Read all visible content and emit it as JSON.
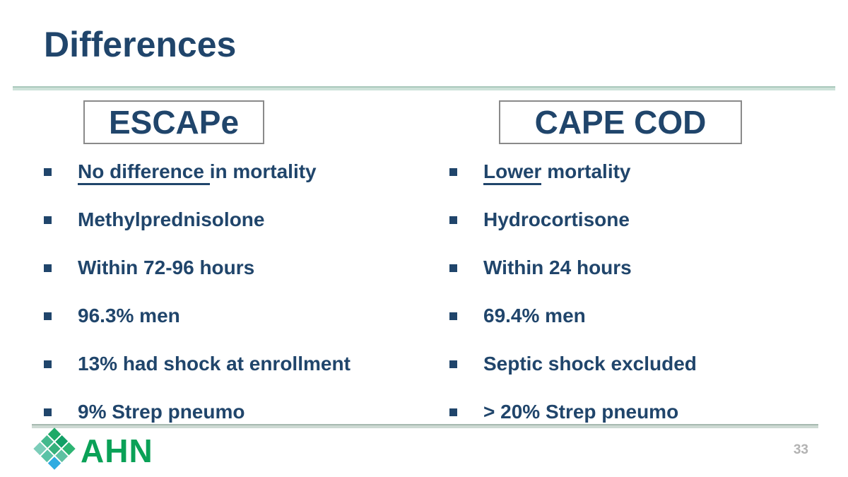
{
  "slide": {
    "title": "Differences",
    "page_number": "33"
  },
  "brand": {
    "name": "AHN",
    "green": "#0aa157",
    "navy": "#20456b",
    "divider_green": "#cde2d9"
  },
  "logo": {
    "tiles": [
      "#1fa967",
      "#12a066",
      "#2db473",
      "#43b98d",
      "#35b17c",
      "#5ec1a2",
      "#7ccdb9",
      "#59c2a6",
      "#2fabe1"
    ]
  },
  "columns": [
    {
      "header": "ESCAPe",
      "items": [
        {
          "u": "No difference ",
          "rest": "in mortality"
        },
        {
          "rest": "Methylprednisolone"
        },
        {
          "rest": "Within 72-96 hours"
        },
        {
          "rest": "96.3% men"
        },
        {
          "rest": "13% had shock at enrollment"
        },
        {
          "rest": "9% Strep pneumo"
        }
      ]
    },
    {
      "header": "CAPE COD",
      "items": [
        {
          "u": "Lower",
          "rest": " mortality"
        },
        {
          "rest": "Hydrocortisone"
        },
        {
          "rest": "Within 24 hours"
        },
        {
          "rest": "69.4% men"
        },
        {
          "rest": "Septic shock excluded"
        },
        {
          "rest": "> 20% Strep pneumo"
        }
      ]
    }
  ]
}
